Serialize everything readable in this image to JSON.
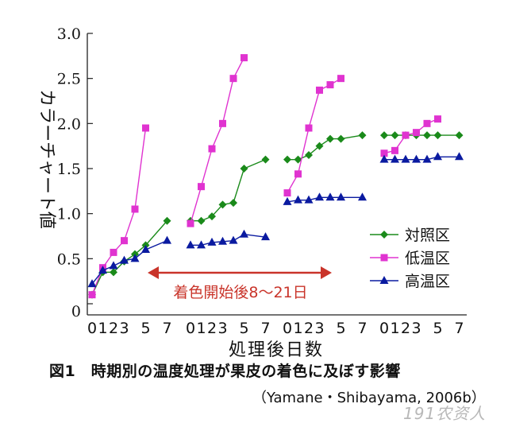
{
  "chart_data": {
    "type": "line",
    "title": "",
    "ylabel": "カラーチャート値",
    "xlabel": "処理後日数",
    "ylim": [
      0,
      3.0
    ],
    "yticks": [
      "0",
      "0.5",
      "1.0",
      "1.5",
      "2.0",
      "2.5",
      "3.0"
    ],
    "ytick_values": [
      0,
      0.5,
      1.0,
      1.5,
      2.0,
      2.5,
      3.0
    ],
    "panels": [
      {
        "x_ticks": [
          "0",
          "1",
          "2",
          "3",
          "5",
          "7"
        ],
        "days": [
          0,
          1,
          2,
          3,
          4,
          5,
          7
        ]
      },
      {
        "x_ticks": [
          "0",
          "1",
          "2",
          "3",
          "5",
          "7"
        ],
        "days": [
          0,
          1,
          2,
          3,
          4,
          5,
          7
        ]
      },
      {
        "x_ticks": [
          "0",
          "1",
          "2",
          "3",
          "5",
          "7"
        ],
        "days": [
          0,
          1,
          2,
          3,
          4,
          5,
          7
        ]
      },
      {
        "x_ticks": [
          "0",
          "1",
          "2",
          "3",
          "5",
          "7"
        ],
        "days": [
          0,
          1,
          2,
          3,
          4,
          5,
          7
        ]
      }
    ],
    "series": [
      {
        "name": "対照区",
        "color": "#1a8a1a",
        "marker": "diamond",
        "segments": [
          [
            0.1,
            0.35,
            0.35,
            0.47,
            0.55,
            0.65,
            0.92
          ],
          [
            0.92,
            0.92,
            0.97,
            1.1,
            1.12,
            1.5,
            1.6
          ],
          [
            1.6,
            1.6,
            1.65,
            1.75,
            1.83,
            1.83,
            1.87
          ],
          [
            1.87,
            1.87,
            1.87,
            1.87,
            1.87,
            1.87,
            1.87
          ]
        ]
      },
      {
        "name": "低温区",
        "color": "#e033d0",
        "marker": "square",
        "segments": [
          [
            0.1,
            0.4,
            0.57,
            0.7,
            1.05,
            1.95,
            null
          ],
          [
            0.89,
            1.3,
            1.72,
            2.0,
            2.5,
            2.73,
            null
          ],
          [
            1.23,
            1.44,
            1.95,
            2.37,
            2.43,
            2.5,
            null
          ],
          [
            1.67,
            1.7,
            1.87,
            1.9,
            2.0,
            2.05,
            null
          ]
        ]
      },
      {
        "name": "高温区",
        "color": "#0a1aa0",
        "marker": "triangle",
        "segments": [
          [
            0.22,
            0.37,
            0.42,
            0.48,
            0.5,
            0.6,
            0.7
          ],
          [
            0.65,
            0.65,
            0.68,
            0.69,
            0.7,
            0.77,
            0.74
          ],
          [
            1.13,
            1.15,
            1.15,
            1.18,
            1.18,
            1.18,
            1.18
          ],
          [
            1.6,
            1.6,
            1.6,
            1.6,
            1.6,
            1.63,
            1.63
          ]
        ]
      }
    ],
    "legend": {
      "placement": "right",
      "items": [
        "対照区",
        "低温区",
        "高温区"
      ]
    },
    "annotation": {
      "text": "着色開始後8～21日",
      "color": "#c9342a"
    },
    "grid": false
  },
  "caption": "図1　時期別の温度処理が果皮の着色に及ぼす影響",
  "source": "（Yamane・Shibayama, 2006b）",
  "watermark": "191农资人"
}
